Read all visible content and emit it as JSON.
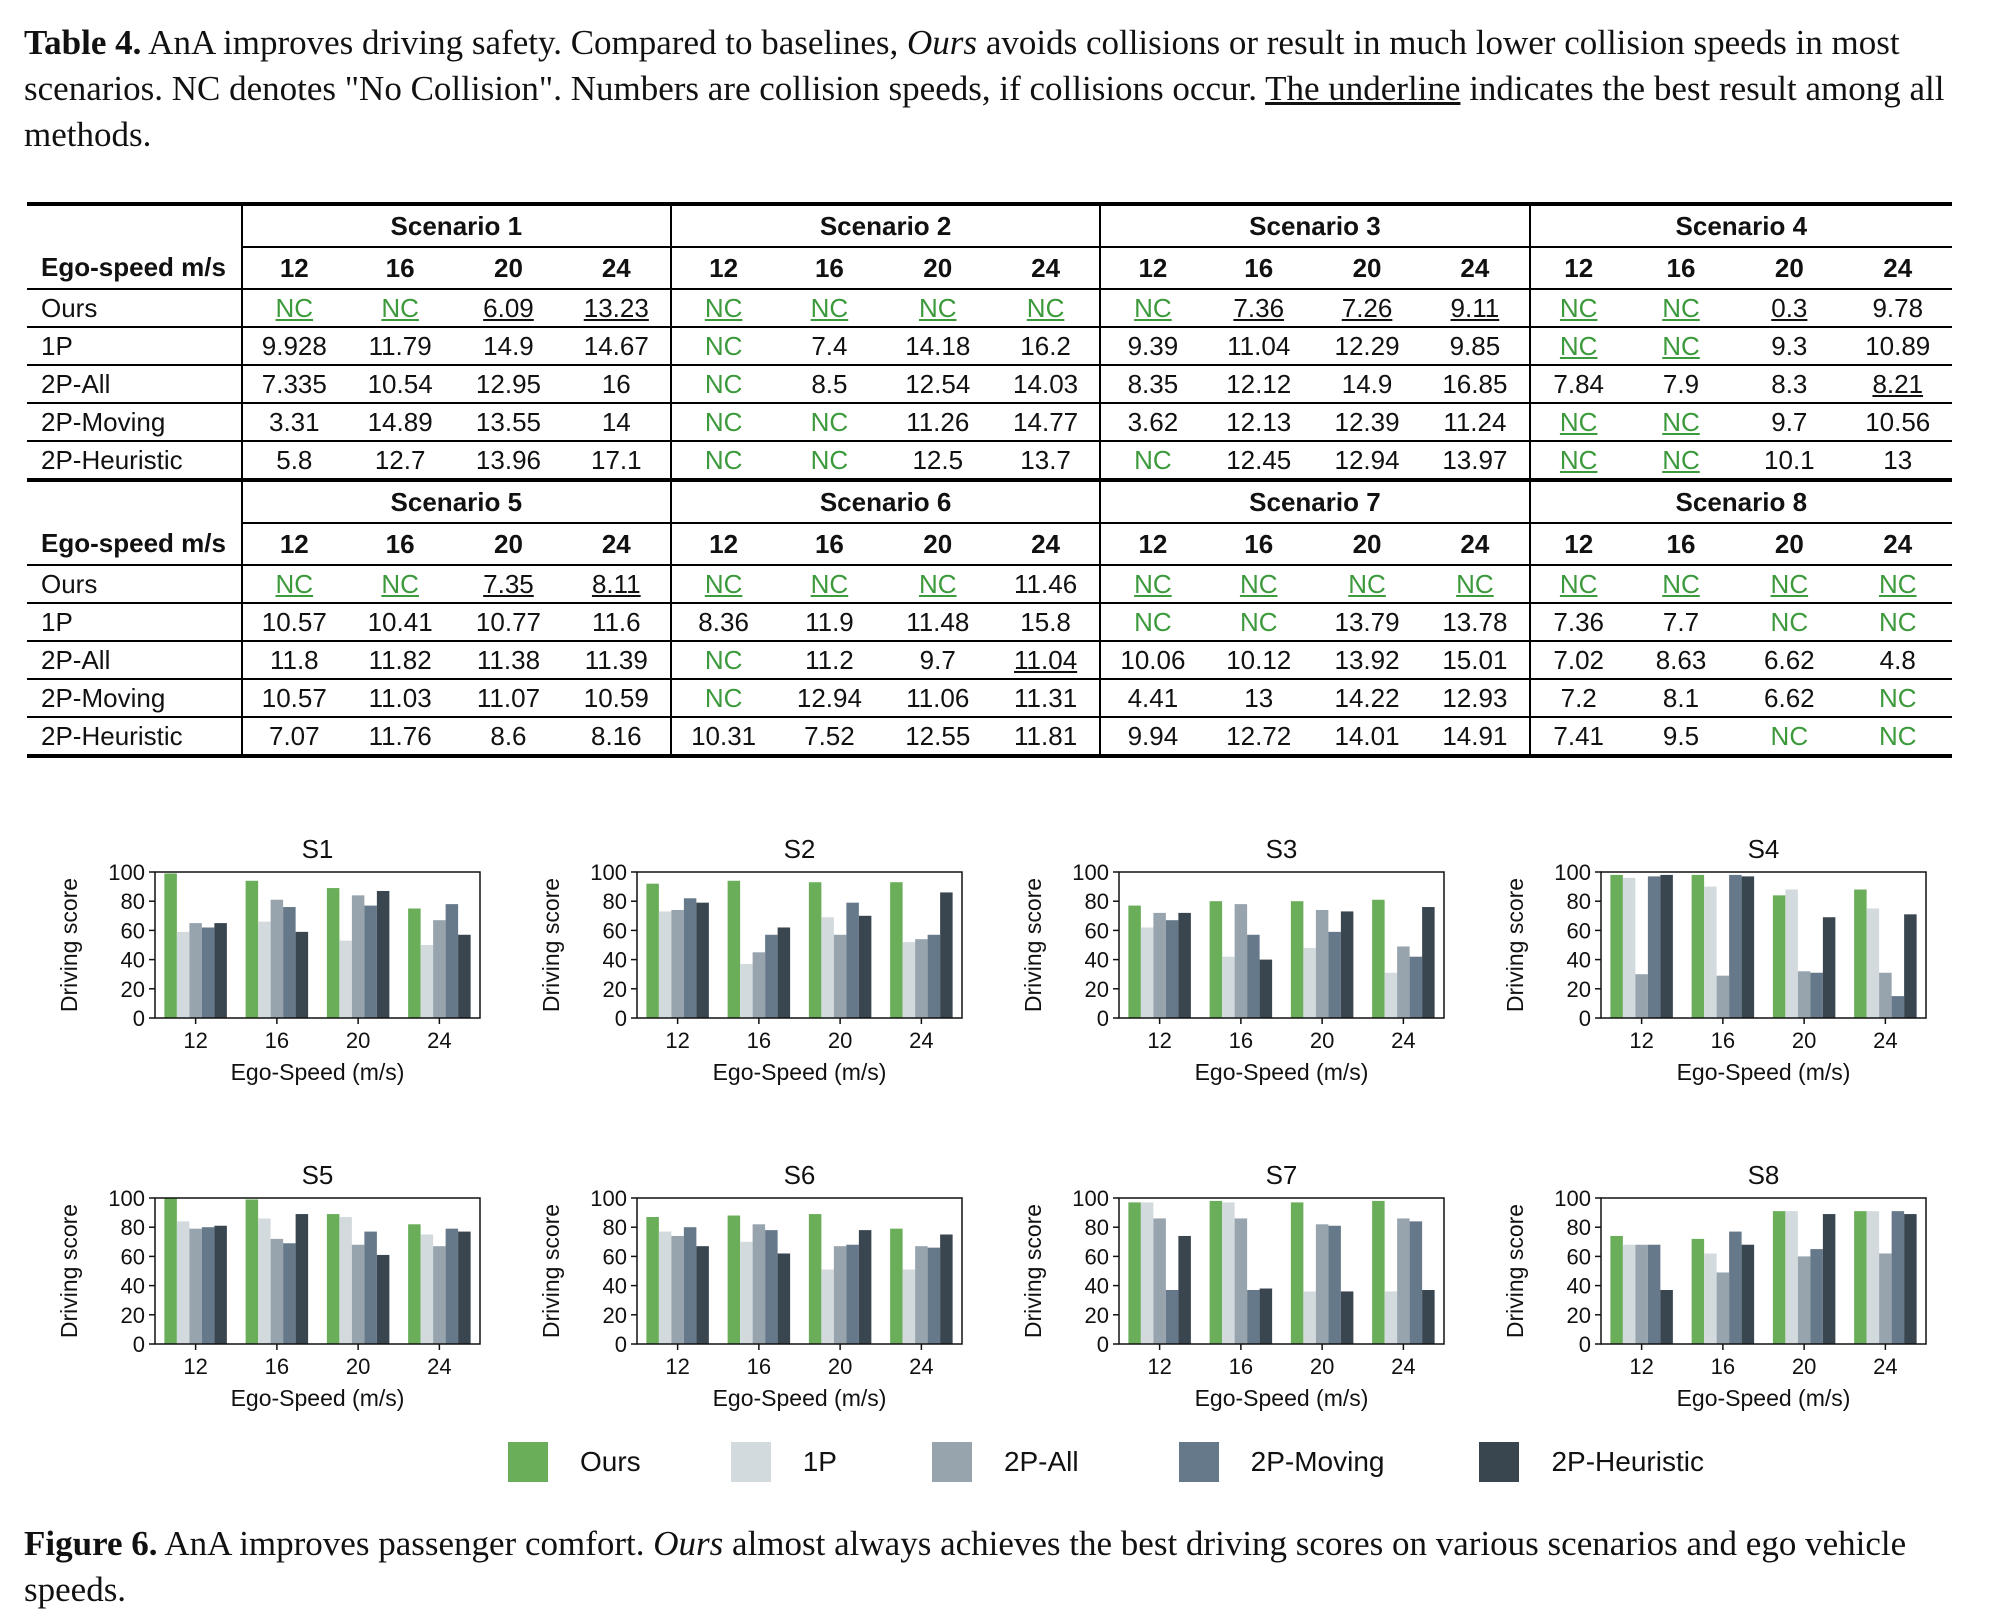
{
  "table_caption": {
    "label": "Table 4.",
    "text1": " AnA improves driving safety. Compared to baselines, ",
    "ours_word": "Ours",
    "text2": " avoids collisions or result in much lower collision speeds in most scenarios. NC denotes \"No Collision\". Numbers are collision speeds, if collisions occur. ",
    "underline_text": "The underline",
    "text3": " indicates the best result among all methods."
  },
  "table": {
    "speed_header": "Ego-speed m/s",
    "speeds": [
      "12",
      "16",
      "20",
      "24"
    ],
    "methods": [
      "Ours",
      "1P",
      "2P-All",
      "2P-Moving",
      "2P-Heuristic"
    ],
    "blocks": [
      {
        "scenarios": [
          "Scenario 1",
          "Scenario 2",
          "Scenario 3",
          "Scenario 4"
        ],
        "rows": [
          [
            [
              "NC",
              "NC",
              "6.09",
              "13.23"
            ],
            [
              "NC",
              "NC",
              "NC",
              "NC"
            ],
            [
              "NC",
              "7.36",
              "7.26",
              "9.11"
            ],
            [
              "NC",
              "NC",
              "0.3",
              "9.78"
            ]
          ],
          [
            [
              "9.928",
              "11.79",
              "14.9",
              "14.67"
            ],
            [
              "NC",
              "7.4",
              "14.18",
              "16.2"
            ],
            [
              "9.39",
              "11.04",
              "12.29",
              "9.85"
            ],
            [
              "NC",
              "NC",
              "9.3",
              "10.89"
            ]
          ],
          [
            [
              "7.335",
              "10.54",
              "12.95",
              "16"
            ],
            [
              "NC",
              "8.5",
              "12.54",
              "14.03"
            ],
            [
              "8.35",
              "12.12",
              "14.9",
              "16.85"
            ],
            [
              "7.84",
              "7.9",
              "8.3",
              "8.21"
            ]
          ],
          [
            [
              "3.31",
              "14.89",
              "13.55",
              "14"
            ],
            [
              "NC",
              "NC",
              "11.26",
              "14.77"
            ],
            [
              "3.62",
              "12.13",
              "12.39",
              "11.24"
            ],
            [
              "NC",
              "NC",
              "9.7",
              "10.56"
            ]
          ],
          [
            [
              "5.8",
              "12.7",
              "13.96",
              "17.1"
            ],
            [
              "NC",
              "NC",
              "12.5",
              "13.7"
            ],
            [
              "NC",
              "12.45",
              "12.94",
              "13.97"
            ],
            [
              "NC",
              "NC",
              "10.1",
              "13"
            ]
          ]
        ],
        "underlined": [
          [
            [
              1,
              1,
              1,
              1
            ],
            [
              1,
              1,
              1,
              1
            ],
            [
              1,
              1,
              1,
              1
            ],
            [
              1,
              1,
              1,
              0
            ]
          ],
          [
            [
              0,
              0,
              0,
              0
            ],
            [
              0,
              0,
              0,
              0
            ],
            [
              0,
              0,
              0,
              0
            ],
            [
              1,
              1,
              0,
              0
            ]
          ],
          [
            [
              0,
              0,
              0,
              0
            ],
            [
              0,
              0,
              0,
              0
            ],
            [
              0,
              0,
              0,
              0
            ],
            [
              0,
              0,
              0,
              1
            ]
          ],
          [
            [
              0,
              0,
              0,
              0
            ],
            [
              0,
              0,
              0,
              0
            ],
            [
              0,
              0,
              0,
              0
            ],
            [
              1,
              1,
              0,
              0
            ]
          ],
          [
            [
              0,
              0,
              0,
              0
            ],
            [
              0,
              0,
              0,
              0
            ],
            [
              0,
              0,
              0,
              0
            ],
            [
              1,
              1,
              0,
              0
            ]
          ]
        ]
      },
      {
        "scenarios": [
          "Scenario 5",
          "Scenario 6",
          "Scenario 7",
          "Scenario 8"
        ],
        "rows": [
          [
            [
              "NC",
              "NC",
              "7.35",
              "8.11"
            ],
            [
              "NC",
              "NC",
              "NC",
              "11.46"
            ],
            [
              "NC",
              "NC",
              "NC",
              "NC"
            ],
            [
              "NC",
              "NC",
              "NC",
              "NC"
            ]
          ],
          [
            [
              "10.57",
              "10.41",
              "10.77",
              "11.6"
            ],
            [
              "8.36",
              "11.9",
              "11.48",
              "15.8"
            ],
            [
              "NC",
              "NC",
              "13.79",
              "13.78"
            ],
            [
              "7.36",
              "7.7",
              "NC",
              "NC"
            ]
          ],
          [
            [
              "11.8",
              "11.82",
              "11.38",
              "11.39"
            ],
            [
              "NC",
              "11.2",
              "9.7",
              "11.04"
            ],
            [
              "10.06",
              "10.12",
              "13.92",
              "15.01"
            ],
            [
              "7.02",
              "8.63",
              "6.62",
              "4.8"
            ]
          ],
          [
            [
              "10.57",
              "11.03",
              "11.07",
              "10.59"
            ],
            [
              "NC",
              "12.94",
              "11.06",
              "11.31"
            ],
            [
              "4.41",
              "13",
              "14.22",
              "12.93"
            ],
            [
              "7.2",
              "8.1",
              "6.62",
              "NC"
            ]
          ],
          [
            [
              "7.07",
              "11.76",
              "8.6",
              "8.16"
            ],
            [
              "10.31",
              "7.52",
              "12.55",
              "11.81"
            ],
            [
              "9.94",
              "12.72",
              "14.01",
              "14.91"
            ],
            [
              "7.41",
              "9.5",
              "NC",
              "NC"
            ]
          ]
        ],
        "underlined": [
          [
            [
              1,
              1,
              1,
              1
            ],
            [
              1,
              1,
              1,
              0
            ],
            [
              1,
              1,
              1,
              1
            ],
            [
              1,
              1,
              1,
              1
            ]
          ],
          [
            [
              0,
              0,
              0,
              0
            ],
            [
              0,
              0,
              0,
              0
            ],
            [
              0,
              0,
              0,
              0
            ],
            [
              0,
              0,
              0,
              0
            ]
          ],
          [
            [
              0,
              0,
              0,
              0
            ],
            [
              0,
              0,
              0,
              1
            ],
            [
              0,
              0,
              0,
              0
            ],
            [
              0,
              0,
              0,
              0
            ]
          ],
          [
            [
              0,
              0,
              0,
              0
            ],
            [
              0,
              0,
              0,
              0
            ],
            [
              0,
              0,
              0,
              0
            ],
            [
              0,
              0,
              0,
              0
            ]
          ],
          [
            [
              0,
              0,
              0,
              0
            ],
            [
              0,
              0,
              0,
              0
            ],
            [
              0,
              0,
              0,
              0
            ],
            [
              0,
              0,
              0,
              0
            ]
          ]
        ]
      }
    ]
  },
  "chart_data": [
    {
      "type": "bar",
      "title": "S1",
      "xlabel": "Ego-Speed (m/s)",
      "ylabel": "Driving score",
      "categories": [
        "12",
        "16",
        "20",
        "24"
      ],
      "ylim": [
        0,
        100
      ],
      "yticks": [
        0,
        20,
        40,
        60,
        80,
        100
      ],
      "series": [
        {
          "name": "Ours",
          "values": [
            99,
            94,
            89,
            75
          ]
        },
        {
          "name": "1P",
          "values": [
            59,
            66,
            53,
            50
          ]
        },
        {
          "name": "2P-All",
          "values": [
            65,
            81,
            84,
            67
          ]
        },
        {
          "name": "2P-Moving",
          "values": [
            62,
            76,
            77,
            78
          ]
        },
        {
          "name": "2P-Heuristic",
          "values": [
            65,
            59,
            87,
            57
          ]
        }
      ]
    },
    {
      "type": "bar",
      "title": "S2",
      "xlabel": "Ego-Speed (m/s)",
      "ylabel": "Driving score",
      "categories": [
        "12",
        "16",
        "20",
        "24"
      ],
      "ylim": [
        0,
        100
      ],
      "yticks": [
        0,
        20,
        40,
        60,
        80,
        100
      ],
      "series": [
        {
          "name": "Ours",
          "values": [
            92,
            94,
            93,
            93
          ]
        },
        {
          "name": "1P",
          "values": [
            73,
            37,
            69,
            52
          ]
        },
        {
          "name": "2P-All",
          "values": [
            74,
            45,
            57,
            54
          ]
        },
        {
          "name": "2P-Moving",
          "values": [
            82,
            57,
            79,
            57
          ]
        },
        {
          "name": "2P-Heuristic",
          "values": [
            79,
            62,
            70,
            86
          ]
        }
      ]
    },
    {
      "type": "bar",
      "title": "S3",
      "xlabel": "Ego-Speed (m/s)",
      "ylabel": "Driving score",
      "categories": [
        "12",
        "16",
        "20",
        "24"
      ],
      "ylim": [
        0,
        100
      ],
      "yticks": [
        0,
        20,
        40,
        60,
        80,
        100
      ],
      "series": [
        {
          "name": "Ours",
          "values": [
            77,
            80,
            80,
            81
          ]
        },
        {
          "name": "1P",
          "values": [
            62,
            42,
            48,
            31
          ]
        },
        {
          "name": "2P-All",
          "values": [
            72,
            78,
            74,
            49
          ]
        },
        {
          "name": "2P-Moving",
          "values": [
            67,
            57,
            59,
            42
          ]
        },
        {
          "name": "2P-Heuristic",
          "values": [
            72,
            40,
            73,
            76
          ]
        }
      ]
    },
    {
      "type": "bar",
      "title": "S4",
      "xlabel": "Ego-Speed (m/s)",
      "ylabel": "Driving score",
      "categories": [
        "12",
        "16",
        "20",
        "24"
      ],
      "ylim": [
        0,
        100
      ],
      "yticks": [
        0,
        20,
        40,
        60,
        80,
        100
      ],
      "series": [
        {
          "name": "Ours",
          "values": [
            98,
            98,
            84,
            88
          ]
        },
        {
          "name": "1P",
          "values": [
            96,
            90,
            88,
            75
          ]
        },
        {
          "name": "2P-All",
          "values": [
            30,
            29,
            32,
            31
          ]
        },
        {
          "name": "2P-Moving",
          "values": [
            97,
            98,
            31,
            15
          ]
        },
        {
          "name": "2P-Heuristic",
          "values": [
            98,
            97,
            69,
            71
          ]
        }
      ]
    },
    {
      "type": "bar",
      "title": "S5",
      "xlabel": "Ego-Speed (m/s)",
      "ylabel": "Driving score",
      "categories": [
        "12",
        "16",
        "20",
        "24"
      ],
      "ylim": [
        0,
        100
      ],
      "yticks": [
        0,
        20,
        40,
        60,
        80,
        100
      ],
      "series": [
        {
          "name": "Ours",
          "values": [
            100,
            99,
            89,
            82
          ]
        },
        {
          "name": "1P",
          "values": [
            84,
            86,
            87,
            75
          ]
        },
        {
          "name": "2P-All",
          "values": [
            79,
            72,
            68,
            67
          ]
        },
        {
          "name": "2P-Moving",
          "values": [
            80,
            69,
            77,
            79
          ]
        },
        {
          "name": "2P-Heuristic",
          "values": [
            81,
            89,
            61,
            77
          ]
        }
      ]
    },
    {
      "type": "bar",
      "title": "S6",
      "xlabel": "Ego-Speed (m/s)",
      "ylabel": "Driving score",
      "categories": [
        "12",
        "16",
        "20",
        "24"
      ],
      "ylim": [
        0,
        100
      ],
      "yticks": [
        0,
        20,
        40,
        60,
        80,
        100
      ],
      "series": [
        {
          "name": "Ours",
          "values": [
            87,
            88,
            89,
            79
          ]
        },
        {
          "name": "1P",
          "values": [
            77,
            70,
            51,
            51
          ]
        },
        {
          "name": "2P-All",
          "values": [
            74,
            82,
            67,
            67
          ]
        },
        {
          "name": "2P-Moving",
          "values": [
            80,
            78,
            68,
            66
          ]
        },
        {
          "name": "2P-Heuristic",
          "values": [
            67,
            62,
            78,
            75
          ]
        }
      ]
    },
    {
      "type": "bar",
      "title": "S7",
      "xlabel": "Ego-Speed (m/s)",
      "ylabel": "Driving score",
      "categories": [
        "12",
        "16",
        "20",
        "24"
      ],
      "ylim": [
        0,
        100
      ],
      "yticks": [
        0,
        20,
        40,
        60,
        80,
        100
      ],
      "series": [
        {
          "name": "Ours",
          "values": [
            97,
            98,
            97,
            98
          ]
        },
        {
          "name": "1P",
          "values": [
            97,
            97,
            36,
            36
          ]
        },
        {
          "name": "2P-All",
          "values": [
            86,
            86,
            82,
            86
          ]
        },
        {
          "name": "2P-Moving",
          "values": [
            37,
            37,
            81,
            84
          ]
        },
        {
          "name": "2P-Heuristic",
          "values": [
            74,
            38,
            36,
            37
          ]
        }
      ]
    },
    {
      "type": "bar",
      "title": "S8",
      "xlabel": "Ego-Speed (m/s)",
      "ylabel": "Driving score",
      "categories": [
        "12",
        "16",
        "20",
        "24"
      ],
      "ylim": [
        0,
        100
      ],
      "yticks": [
        0,
        20,
        40,
        60,
        80,
        100
      ],
      "series": [
        {
          "name": "Ours",
          "values": [
            74,
            72,
            91,
            91
          ]
        },
        {
          "name": "1P",
          "values": [
            68,
            62,
            91,
            91
          ]
        },
        {
          "name": "2P-All",
          "values": [
            68,
            49,
            60,
            62
          ]
        },
        {
          "name": "2P-Moving",
          "values": [
            68,
            77,
            65,
            91
          ]
        },
        {
          "name": "2P-Heuristic",
          "values": [
            37,
            68,
            89,
            89
          ]
        }
      ]
    }
  ],
  "series_colors": {
    "Ours": "#6aae5a",
    "1P": "#d3dadd",
    "2P-All": "#97a4ae",
    "2P-Moving": "#66798a",
    "2P-Heuristic": "#39454f"
  },
  "legend": [
    {
      "label": "Ours",
      "color": "#6aae5a"
    },
    {
      "label": "1P",
      "color": "#d3dadd"
    },
    {
      "label": "2P-All",
      "color": "#97a4ae"
    },
    {
      "label": "2P-Moving",
      "color": "#66798a"
    },
    {
      "label": "2P-Heuristic",
      "color": "#39454f"
    }
  ],
  "figure_caption": {
    "label": "Figure 6.",
    "text1": " AnA improves passenger comfort. ",
    "ours_word": "Ours",
    "text2": " almost always achieves the best driving scores on various scenarios and ego vehicle speeds."
  },
  "colors": {
    "nc_green": "#3c9a3c"
  }
}
